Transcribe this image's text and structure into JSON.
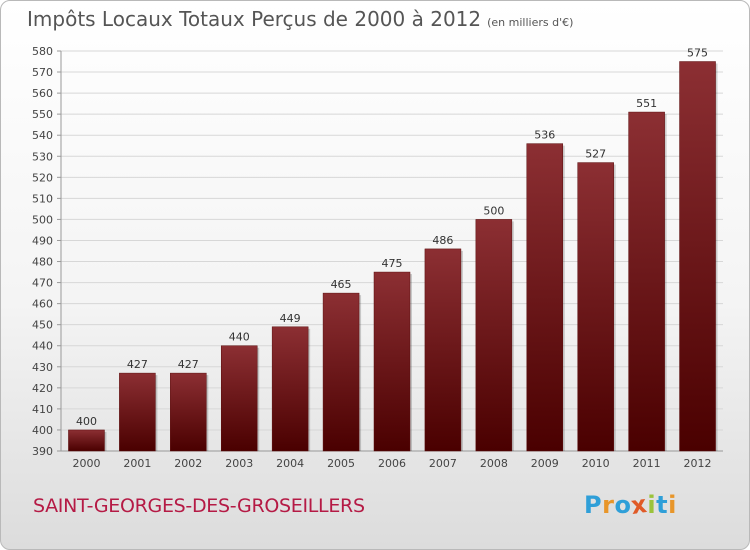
{
  "header": {
    "title": "Impôts Locaux Totaux Perçus de 2000 à 2012",
    "unit": "(en milliers d'€)"
  },
  "footer": {
    "commune": "SAINT-GEORGES-DES-GROSEILLERS",
    "logo": "Proxiti"
  },
  "colors": {
    "bar_top": "#8c2f33",
    "bar_bottom": "#4a0000",
    "title": "#555555",
    "commune": "#b51a45",
    "logo": [
      "#2f9fd8",
      "#e8962a",
      "#2f9fd8",
      "#e05a27",
      "#9bc33b",
      "#2f9fd8",
      "#e8962a"
    ]
  },
  "chart_data": {
    "type": "bar",
    "title": "Impôts Locaux Totaux Perçus de 2000 à 2012",
    "xlabel": "",
    "ylabel": "",
    "categories": [
      "2000",
      "2001",
      "2002",
      "2003",
      "2004",
      "2005",
      "2006",
      "2007",
      "2008",
      "2009",
      "2010",
      "2011",
      "2012"
    ],
    "values": [
      400,
      427,
      427,
      440,
      449,
      465,
      475,
      486,
      500,
      536,
      527,
      551,
      575
    ],
    "ylim": [
      390,
      580
    ],
    "yticks": [
      390,
      400,
      410,
      420,
      430,
      440,
      450,
      460,
      470,
      480,
      490,
      500,
      510,
      520,
      530,
      540,
      550,
      560,
      570,
      580
    ],
    "grid": true
  }
}
